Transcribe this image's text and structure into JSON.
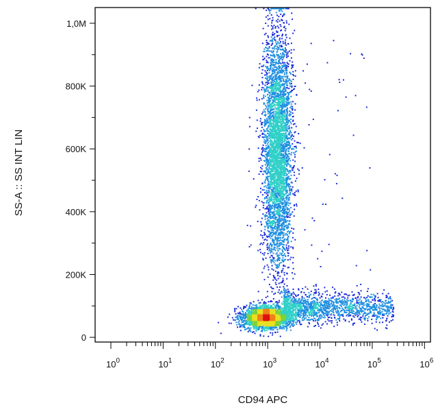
{
  "chart_data": {
    "type": "scatter",
    "subtype": "flow-cytometry-density-dot-plot",
    "xlabel": "CD94 APC",
    "ylabel": "SS-A :: SS INT LIN",
    "x_scale": "log",
    "y_scale": "linear",
    "xlim": [
      0.5,
      1300000
    ],
    "ylim": [
      -15000,
      1050000
    ],
    "x_ticks": [
      {
        "value": 1,
        "base": "10",
        "exp": "0"
      },
      {
        "value": 10,
        "base": "10",
        "exp": "1"
      },
      {
        "value": 100,
        "base": "10",
        "exp": "2"
      },
      {
        "value": 1000,
        "base": "10",
        "exp": "3"
      },
      {
        "value": 10000,
        "base": "10",
        "exp": "4"
      },
      {
        "value": 100000,
        "base": "10",
        "exp": "5"
      },
      {
        "value": 1000000,
        "base": "10",
        "exp": "6"
      }
    ],
    "y_ticks": [
      {
        "value": 0,
        "label": "0"
      },
      {
        "value": 200000,
        "label": "200K"
      },
      {
        "value": 400000,
        "label": "400K"
      },
      {
        "value": 600000,
        "label": "600K"
      },
      {
        "value": 800000,
        "label": "800K"
      },
      {
        "value": 1000000,
        "label": "1,0M"
      }
    ],
    "grid": false,
    "color_scale": [
      "#1a2ad8",
      "#1f8fe0",
      "#30d0c8",
      "#7cd23a",
      "#e8e020",
      "#f08018",
      "#e01010"
    ],
    "populations": [
      {
        "id": "cd94-negative-events-bottom",
        "x_center": 900,
        "y_center": 65000,
        "x_spread_decades": 0.22,
        "y_spread": 18000,
        "events": 2600
      },
      {
        "id": "cd94-high-events-vertical",
        "x_center": 1500,
        "y_center": 600000,
        "x_spread_decades": 0.14,
        "y_spread": 190000,
        "events": 4200
      },
      {
        "id": "cd94-positive-tail-horizontal",
        "x_range": [
          2000,
          250000
        ],
        "y_center": 95000,
        "y_spread": 20000,
        "events": 1500
      },
      {
        "id": "sparse-outlier-events",
        "events": 90
      }
    ]
  }
}
